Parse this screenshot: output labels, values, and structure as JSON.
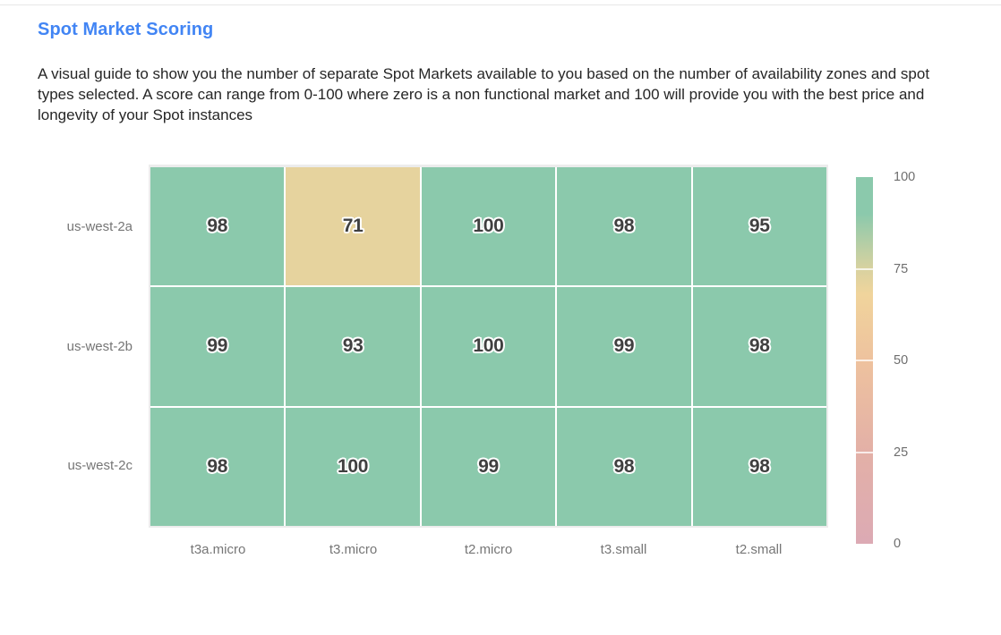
{
  "page": {
    "title": "Spot Market Scoring",
    "description": "A visual guide to show you the number of separate Spot Markets available to you based on the number of availability zones and spot types selected. A score can range from 0-100 where zero is a non functional market and 100 will provide you with the best price and longevity of your Spot instances"
  },
  "colors": {
    "title_blue": "#4285f4",
    "cell_green": "#8bc9ac",
    "cell_amber": "#f0d49c",
    "cell_text": "#404040",
    "axis_label_gray": "#767676",
    "colorbar_pink": "#dcaab4"
  },
  "chart_data": {
    "type": "heatmap",
    "title": "Spot Market Scoring",
    "rows": [
      "us-west-2a",
      "us-west-2b",
      "us-west-2c"
    ],
    "columns": [
      "t3a.micro",
      "t3.micro",
      "t2.micro",
      "t3.small",
      "t2.small"
    ],
    "values": [
      [
        98,
        71,
        100,
        98,
        95
      ],
      [
        99,
        93,
        100,
        99,
        98
      ],
      [
        98,
        100,
        99,
        98,
        98
      ]
    ],
    "value_range": [
      0,
      100
    ],
    "grid": "off",
    "legend_position": "right",
    "colorbar": {
      "ticks": [
        100,
        75,
        50,
        25,
        0
      ],
      "min": 0,
      "max": 100,
      "color_stops": [
        {
          "value": 100,
          "color": "#8bc9ac"
        },
        {
          "value": 88,
          "color": "#8cc9ab"
        },
        {
          "value": 75,
          "color": "#d8d2a0"
        },
        {
          "value": 68,
          "color": "#f0d49c"
        },
        {
          "value": 50,
          "color": "#eec29e"
        },
        {
          "value": 25,
          "color": "#e3b0a7"
        },
        {
          "value": 0,
          "color": "#dcaab4"
        }
      ]
    }
  }
}
